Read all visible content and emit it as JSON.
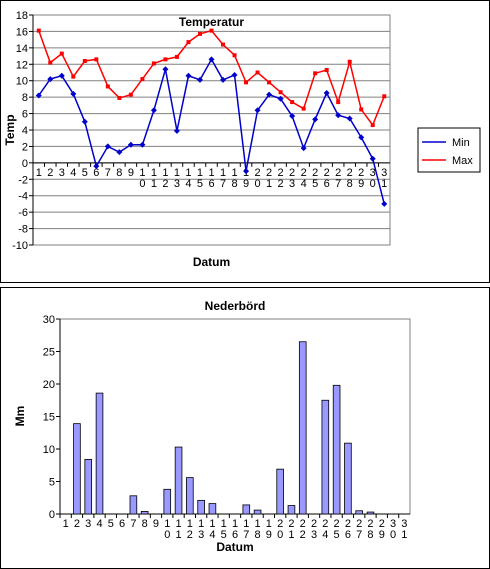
{
  "chart_data": [
    {
      "type": "line",
      "title": "Temperatur",
      "x_label": "Datum",
      "y_label": "Temp",
      "categories": [
        "1",
        "2",
        "3",
        "4",
        "5",
        "6",
        "7",
        "8",
        "9",
        "10",
        "11",
        "12",
        "13",
        "14",
        "15",
        "16",
        "17",
        "18",
        "19",
        "20",
        "21",
        "22",
        "23",
        "24",
        "25",
        "26",
        "27",
        "28",
        "29",
        "30",
        "31"
      ],
      "series": [
        {
          "name": "Min",
          "color": "#0000cc",
          "values": [
            8.2,
            10.2,
            10.6,
            8.4,
            5.0,
            -0.4,
            2.0,
            1.3,
            2.2,
            2.2,
            6.4,
            11.4,
            3.9,
            10.6,
            10.1,
            12.6,
            10.1,
            10.7,
            -1.0,
            6.4,
            8.3,
            7.8,
            5.7,
            1.8,
            5.3,
            8.5,
            5.8,
            5.4,
            3.1,
            0.5,
            -5.0
          ]
        },
        {
          "name": "Max",
          "color": "#ff0000",
          "values": [
            16.1,
            12.2,
            13.3,
            10.5,
            12.4,
            12.6,
            9.3,
            7.9,
            8.3,
            10.2,
            12.1,
            12.6,
            12.9,
            14.7,
            15.7,
            16.1,
            14.4,
            13.1,
            9.8,
            11.0,
            9.8,
            8.6,
            7.4,
            6.6,
            10.9,
            11.3,
            7.4,
            12.3,
            6.5,
            4.6,
            8.1
          ]
        }
      ],
      "ylim": [
        -10,
        18
      ],
      "yticks": [
        -10,
        -8,
        -6,
        -4,
        -2,
        0,
        2,
        4,
        6,
        8,
        10,
        12,
        14,
        16,
        18
      ],
      "grid": true,
      "legend": "right"
    },
    {
      "type": "bar",
      "title": "Nederbörd",
      "x_label": "Datum",
      "y_label": "Mm",
      "categories": [
        "1",
        "2",
        "3",
        "4",
        "5",
        "6",
        "7",
        "8",
        "9",
        "10",
        "11",
        "12",
        "13",
        "14",
        "15",
        "16",
        "17",
        "18",
        "19",
        "20",
        "21",
        "22",
        "23",
        "24",
        "25",
        "26",
        "27",
        "28",
        "29",
        "30",
        "31"
      ],
      "values": [
        0,
        13.9,
        8.4,
        18.6,
        0,
        0,
        2.8,
        0.4,
        0,
        3.8,
        10.3,
        5.6,
        2.1,
        1.6,
        0,
        0,
        1.4,
        0.6,
        0,
        6.9,
        1.3,
        26.5,
        0,
        17.5,
        19.8,
        10.9,
        0.5,
        0.3,
        0,
        0,
        0
      ],
      "color": "#9999ff",
      "ylim": [
        0,
        30
      ],
      "yticks": [
        0,
        5,
        10,
        15,
        20,
        25,
        30
      ],
      "grid": false
    }
  ]
}
